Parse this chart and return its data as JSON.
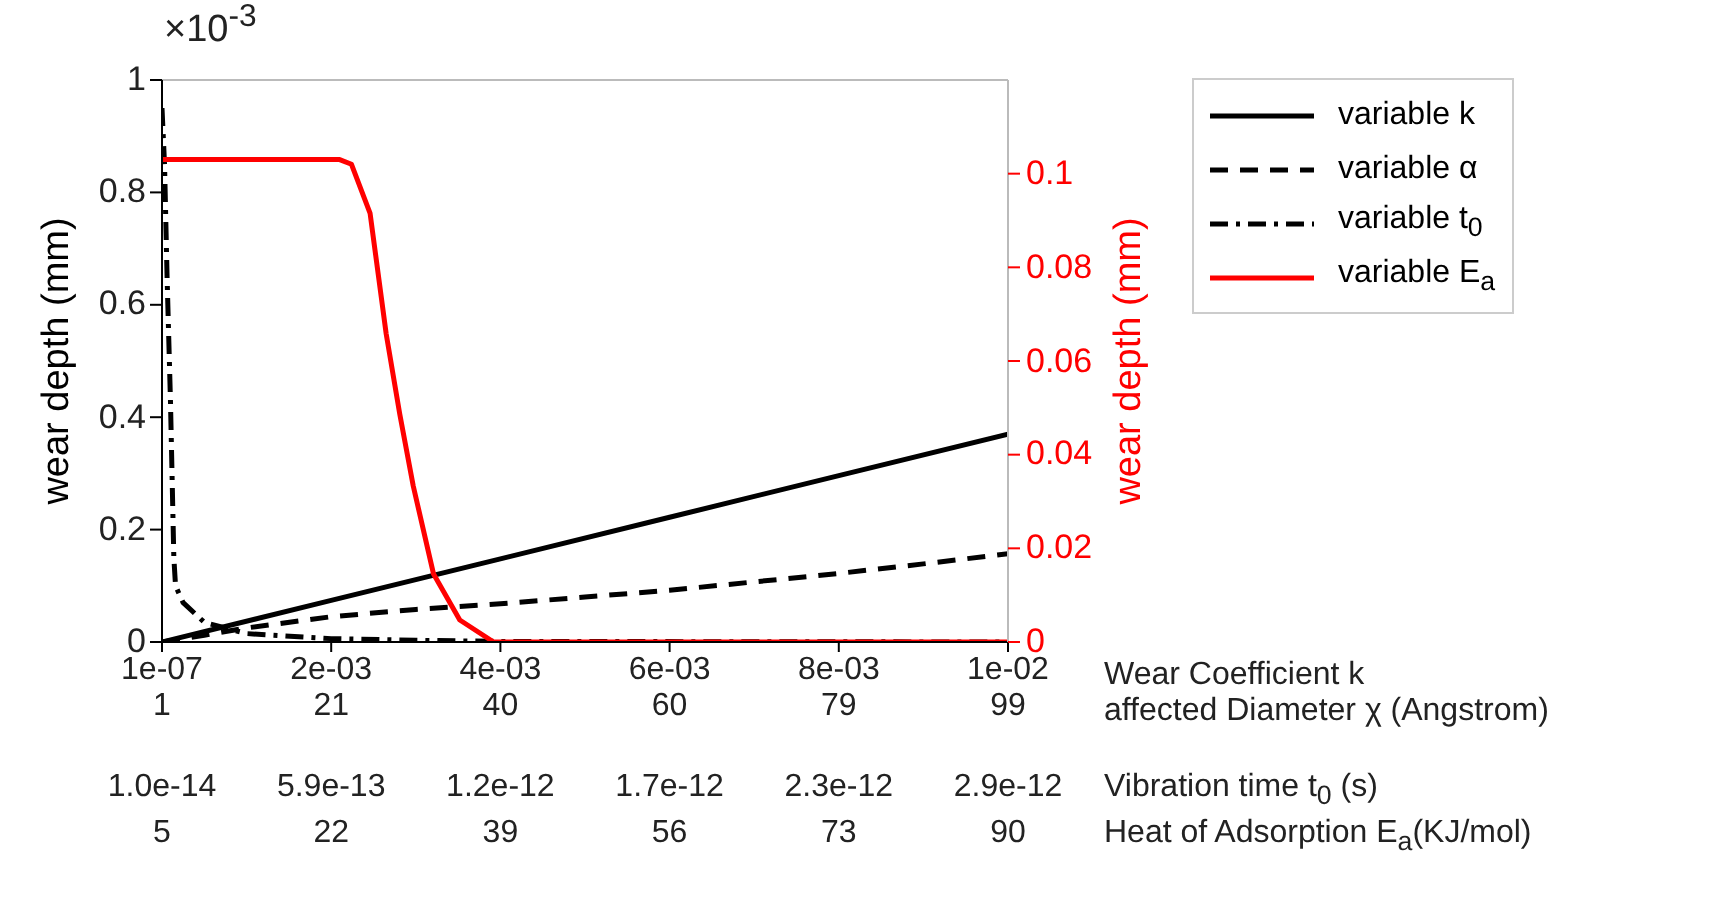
{
  "chart_data": {
    "type": "line",
    "xlabel": "Wear Coefficient k",
    "x2label": "affected Diameter χ (Angstrom)",
    "ylabel": "wear depth (mm)",
    "y2label": "wear depth (mm)",
    "annotations": [
      "×10$^{-3}$",
      "1.0e-14",
      "5.9e-13",
      "1.2e-12",
      "1.7e-12",
      "2.3e-12",
      "2.9e-12",
      "Vibration time t$_{0}$ (s)",
      "5",
      "22",
      "39",
      "56",
      "73",
      "90",
      "Heat of Adsorption E$_{a}$(KJ/mol)"
    ],
    "xlim": [
      1e-07,
      0.01
    ],
    "xticks": [
      {
        "value": 1e-07,
        "label": "1e-07"
      },
      {
        "value": 0.002,
        "label": "2e-03"
      },
      {
        "value": 0.004,
        "label": "4e-03"
      },
      {
        "value": 0.006,
        "label": "6e-03"
      },
      {
        "value": 0.008,
        "label": "8e-03"
      },
      {
        "value": 0.01,
        "label": "1e-02"
      }
    ],
    "x2lim": [
      1,
      99
    ],
    "x2ticks": [
      1,
      {
        "value": 20.6,
        "label": "21"
      },
      {
        "value": 40.2,
        "label": "40"
      },
      {
        "value": 59.8,
        "label": "60"
      },
      {
        "value": 79.4,
        "label": "79"
      },
      99
    ],
    "ylim": [
      0,
      1
    ],
    "yticks": [
      0,
      0.2,
      0.4,
      0.6,
      0.8,
      1
    ],
    "y2lim": [
      0,
      0.12
    ],
    "y2ticks": [
      0,
      0.02,
      0.04,
      0.06,
      0.08,
      0.1
    ],
    "legend": "right",
    "series": [
      {
        "name": "variable k",
        "color": "#000000",
        "line_style": "solid",
        "x": [
          1e-07,
          0.002,
          0.004,
          0.006,
          0.008,
          0.01
        ],
        "values": [
          0,
          0.074,
          0.148,
          0.222,
          0.296,
          0.37
        ]
      },
      {
        "name": "variable α",
        "color": "#000000",
        "line_style": "dashed",
        "x": [
          1e-07,
          0.0005,
          0.001,
          0.002,
          0.003,
          0.004,
          0.005,
          0.006,
          0.007,
          0.008,
          0.009,
          0.01
        ],
        "values": [
          0,
          0.012,
          0.025,
          0.045,
          0.058,
          0.068,
          0.08,
          0.092,
          0.107,
          0.122,
          0.139,
          0.157
        ]
      },
      {
        "name": "variable t$_{0}$",
        "color": "#000000",
        "line_style": "dashdot",
        "x": [
          1e-07,
          3e-05,
          6e-05,
          0.0001,
          0.00014,
          0.00016,
          0.00025,
          0.0005,
          0.001,
          0.002,
          0.003,
          0.004,
          0.01
        ],
        "values": [
          0.95,
          0.85,
          0.65,
          0.43,
          0.15,
          0.1,
          0.07,
          0.035,
          0.015,
          0.006,
          0.003,
          0.001,
          0
        ]
      },
      {
        "name": "variable E$_{a}$",
        "color": "#ff0000",
        "line_style": "solid",
        "axis": "y2",
        "x": [
          1e-07,
          0.001,
          0.0021,
          0.00224,
          0.00246,
          0.00265,
          0.00281,
          0.00297,
          0.00321,
          0.00352,
          0.00392,
          0.006,
          0.008,
          0.01
        ],
        "values": [
          0.103,
          0.103,
          0.103,
          0.102,
          0.0915,
          0.0658,
          0.0487,
          0.0333,
          0.0145,
          0.0047,
          0,
          0,
          0,
          0
        ]
      }
    ]
  }
}
